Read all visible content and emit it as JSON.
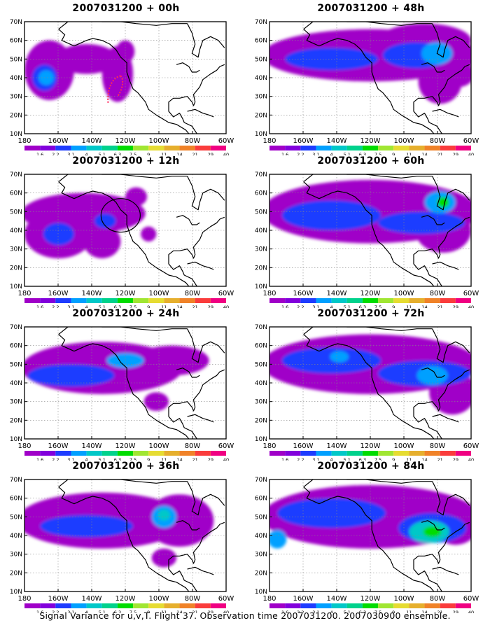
{
  "colorbar": {
    "labels": [
      "1.6",
      "2.2",
      "3.1",
      "4",
      "5.1",
      "6.3",
      "7.5",
      "9",
      "11",
      "14",
      "21",
      "29",
      "40"
    ],
    "colors": [
      "#a000c8",
      "#8200dc",
      "#1e3cff",
      "#00a0ff",
      "#00c8c8",
      "#00d28c",
      "#00dc00",
      "#a0e632",
      "#e6dc32",
      "#e6af2d",
      "#f08228",
      "#fa3c3c",
      "#f00082"
    ]
  },
  "caption": "Signal Variance for u,v,T. Flight 37. Observation time 2007031200. 2007030900 ensemble.",
  "chart_data": [
    {
      "type": "heatmap",
      "title": "2007031200 + 00h",
      "x_ticks": [
        "180",
        "160W",
        "140W",
        "120W",
        "100W",
        "80W",
        "60W"
      ],
      "y_ticks": [
        "10N",
        "20N",
        "30N",
        "40N",
        "50N",
        "60N",
        "70N"
      ],
      "xlim": [
        -190,
        -60
      ],
      "ylim": [
        10,
        70
      ],
      "annotation": "dotted-red-track",
      "blobs": [
        {
          "lon": -174,
          "lat": 44,
          "rx": 16,
          "ry": 16,
          "level": 0
        },
        {
          "lon": -150,
          "lat": 50,
          "rx": 20,
          "ry": 8,
          "level": 0
        },
        {
          "lon": -130,
          "lat": 42,
          "rx": 10,
          "ry": 15,
          "level": 0
        },
        {
          "lon": -125,
          "lat": 54,
          "rx": 6,
          "ry": 6,
          "level": 0
        },
        {
          "lon": -177,
          "lat": 40,
          "rx": 8,
          "ry": 7,
          "level": 2
        },
        {
          "lon": -176,
          "lat": 40,
          "rx": 5,
          "ry": 4,
          "level": 3
        }
      ]
    },
    {
      "type": "heatmap",
      "title": "2007031200 + 48h",
      "x_ticks": [
        "180",
        "160W",
        "140W",
        "120W",
        "100W",
        "80W",
        "60W"
      ],
      "y_ticks": [
        "10N",
        "20N",
        "30N",
        "40N",
        "50N",
        "60N",
        "70N"
      ],
      "xlim": [
        -190,
        -60
      ],
      "ylim": [
        10,
        70
      ],
      "blobs": [
        {
          "lon": -125,
          "lat": 52,
          "rx": 70,
          "ry": 14,
          "level": 0
        },
        {
          "lon": -90,
          "lat": 60,
          "rx": 30,
          "ry": 9,
          "level": 0
        },
        {
          "lon": -80,
          "lat": 38,
          "rx": 14,
          "ry": 12,
          "level": 0
        },
        {
          "lon": -68,
          "lat": 42,
          "rx": 10,
          "ry": 7,
          "level": 0
        },
        {
          "lon": -150,
          "lat": 50,
          "rx": 30,
          "ry": 6,
          "level": 2
        },
        {
          "lon": -95,
          "lat": 52,
          "rx": 22,
          "ry": 7,
          "level": 2
        },
        {
          "lon": -82,
          "lat": 53,
          "rx": 10,
          "ry": 6,
          "level": 3
        }
      ]
    },
    {
      "type": "heatmap",
      "title": "2007031200 + 12h",
      "x_ticks": [
        "180",
        "160W",
        "140W",
        "120W",
        "100W",
        "80W",
        "60W"
      ],
      "y_ticks": [
        "10N",
        "20N",
        "30N",
        "40N",
        "50N",
        "60N",
        "70N"
      ],
      "xlim": [
        -190,
        -60
      ],
      "ylim": [
        10,
        70
      ],
      "annotation": "circle",
      "blobs": [
        {
          "lon": -152,
          "lat": 49,
          "rx": 40,
          "ry": 11,
          "level": 0
        },
        {
          "lon": -168,
          "lat": 38,
          "rx": 22,
          "ry": 13,
          "level": 0
        },
        {
          "lon": -140,
          "lat": 34,
          "rx": 12,
          "ry": 9,
          "level": 0
        },
        {
          "lon": -118,
          "lat": 58,
          "rx": 7,
          "ry": 5,
          "level": 0
        },
        {
          "lon": -110,
          "lat": 38,
          "rx": 5,
          "ry": 4,
          "level": 0
        },
        {
          "lon": -168,
          "lat": 38,
          "rx": 10,
          "ry": 6,
          "level": 2
        },
        {
          "lon": -138,
          "lat": 45,
          "rx": 7,
          "ry": 4,
          "level": 2
        }
      ]
    },
    {
      "type": "heatmap",
      "title": "2007031200 + 60h",
      "x_ticks": [
        "180",
        "160W",
        "140W",
        "120W",
        "100W",
        "80W",
        "60W"
      ],
      "y_ticks": [
        "10N",
        "20N",
        "30N",
        "40N",
        "50N",
        "60N",
        "70N"
      ],
      "xlim": [
        -190,
        -60
      ],
      "ylim": [
        10,
        70
      ],
      "blobs": [
        {
          "lon": -125,
          "lat": 50,
          "rx": 70,
          "ry": 17,
          "level": 0
        },
        {
          "lon": -78,
          "lat": 40,
          "rx": 18,
          "ry": 12,
          "level": 0
        },
        {
          "lon": -150,
          "lat": 48,
          "rx": 32,
          "ry": 8,
          "level": 2
        },
        {
          "lon": -92,
          "lat": 44,
          "rx": 28,
          "ry": 6,
          "level": 2
        },
        {
          "lon": -80,
          "lat": 55,
          "rx": 10,
          "ry": 6,
          "level": 3
        },
        {
          "lon": -78,
          "lat": 55,
          "rx": 4,
          "ry": 3,
          "level": 6
        }
      ]
    },
    {
      "type": "heatmap",
      "title": "2007031200 + 24h",
      "x_ticks": [
        "180",
        "160W",
        "140W",
        "120W",
        "100W",
        "80W",
        "60W"
      ],
      "y_ticks": [
        "10N",
        "20N",
        "30N",
        "40N",
        "50N",
        "60N",
        "70N"
      ],
      "xlim": [
        -190,
        -60
      ],
      "ylim": [
        10,
        70
      ],
      "blobs": [
        {
          "lon": -140,
          "lat": 48,
          "rx": 52,
          "ry": 14,
          "level": 0
        },
        {
          "lon": -95,
          "lat": 52,
          "rx": 24,
          "ry": 8,
          "level": 0
        },
        {
          "lon": -105,
          "lat": 30,
          "rx": 8,
          "ry": 5,
          "level": 0
        },
        {
          "lon": -160,
          "lat": 44,
          "rx": 28,
          "ry": 6,
          "level": 2
        },
        {
          "lon": -125,
          "lat": 52,
          "rx": 12,
          "ry": 4,
          "level": 3
        }
      ]
    },
    {
      "type": "heatmap",
      "title": "2007031200 + 72h",
      "x_ticks": [
        "180",
        "160W",
        "140W",
        "120W",
        "100W",
        "80W",
        "60W"
      ],
      "y_ticks": [
        "10N",
        "20N",
        "30N",
        "40N",
        "50N",
        "60N",
        "70N"
      ],
      "xlim": [
        -190,
        -60
      ],
      "ylim": [
        10,
        70
      ],
      "blobs": [
        {
          "lon": -125,
          "lat": 50,
          "rx": 70,
          "ry": 16,
          "level": 0
        },
        {
          "lon": -72,
          "lat": 35,
          "rx": 15,
          "ry": 12,
          "level": 0
        },
        {
          "lon": -150,
          "lat": 52,
          "rx": 32,
          "ry": 7,
          "level": 2
        },
        {
          "lon": -90,
          "lat": 45,
          "rx": 30,
          "ry": 7,
          "level": 2
        },
        {
          "lon": -85,
          "lat": 44,
          "rx": 10,
          "ry": 5,
          "level": 3
        },
        {
          "lon": -145,
          "lat": 54,
          "rx": 6,
          "ry": 3,
          "level": 3
        }
      ]
    },
    {
      "type": "heatmap",
      "title": "2007031200 + 36h",
      "x_ticks": [
        "180",
        "160W",
        "140W",
        "120W",
        "100W",
        "80W",
        "60W"
      ],
      "y_ticks": [
        "10N",
        "20N",
        "30N",
        "40N",
        "50N",
        "60N",
        "70N"
      ],
      "xlim": [
        -190,
        -60
      ],
      "ylim": [
        10,
        70
      ],
      "blobs": [
        {
          "lon": -140,
          "lat": 48,
          "rx": 55,
          "ry": 15,
          "level": 0
        },
        {
          "lon": -90,
          "lat": 48,
          "rx": 22,
          "ry": 14,
          "level": 0
        },
        {
          "lon": -100,
          "lat": 28,
          "rx": 8,
          "ry": 5,
          "level": 0
        },
        {
          "lon": -150,
          "lat": 45,
          "rx": 30,
          "ry": 6,
          "level": 2
        },
        {
          "lon": -100,
          "lat": 50,
          "rx": 8,
          "ry": 6,
          "level": 3
        },
        {
          "lon": -100,
          "lat": 51,
          "rx": 4,
          "ry": 3,
          "level": 4
        }
      ]
    },
    {
      "type": "heatmap",
      "title": "2007031200 + 84h",
      "x_ticks": [
        "180",
        "160W",
        "140W",
        "120W",
        "100W",
        "80W",
        "60W"
      ],
      "y_ticks": [
        "10N",
        "20N",
        "30N",
        "40N",
        "50N",
        "60N",
        "70N"
      ],
      "xlim": [
        -190,
        -60
      ],
      "ylim": [
        10,
        70
      ],
      "blobs": [
        {
          "lon": -125,
          "lat": 50,
          "rx": 70,
          "ry": 17,
          "level": 0
        },
        {
          "lon": -70,
          "lat": 45,
          "rx": 14,
          "ry": 10,
          "level": 0
        },
        {
          "lon": -150,
          "lat": 52,
          "rx": 35,
          "ry": 8,
          "level": 2
        },
        {
          "lon": -85,
          "lat": 44,
          "rx": 22,
          "ry": 8,
          "level": 2
        },
        {
          "lon": -87,
          "lat": 42,
          "rx": 13,
          "ry": 6,
          "level": 4
        },
        {
          "lon": -85,
          "lat": 42,
          "rx": 6,
          "ry": 3,
          "level": 6
        },
        {
          "lon": -185,
          "lat": 38,
          "rx": 6,
          "ry": 5,
          "level": 3
        }
      ]
    }
  ]
}
